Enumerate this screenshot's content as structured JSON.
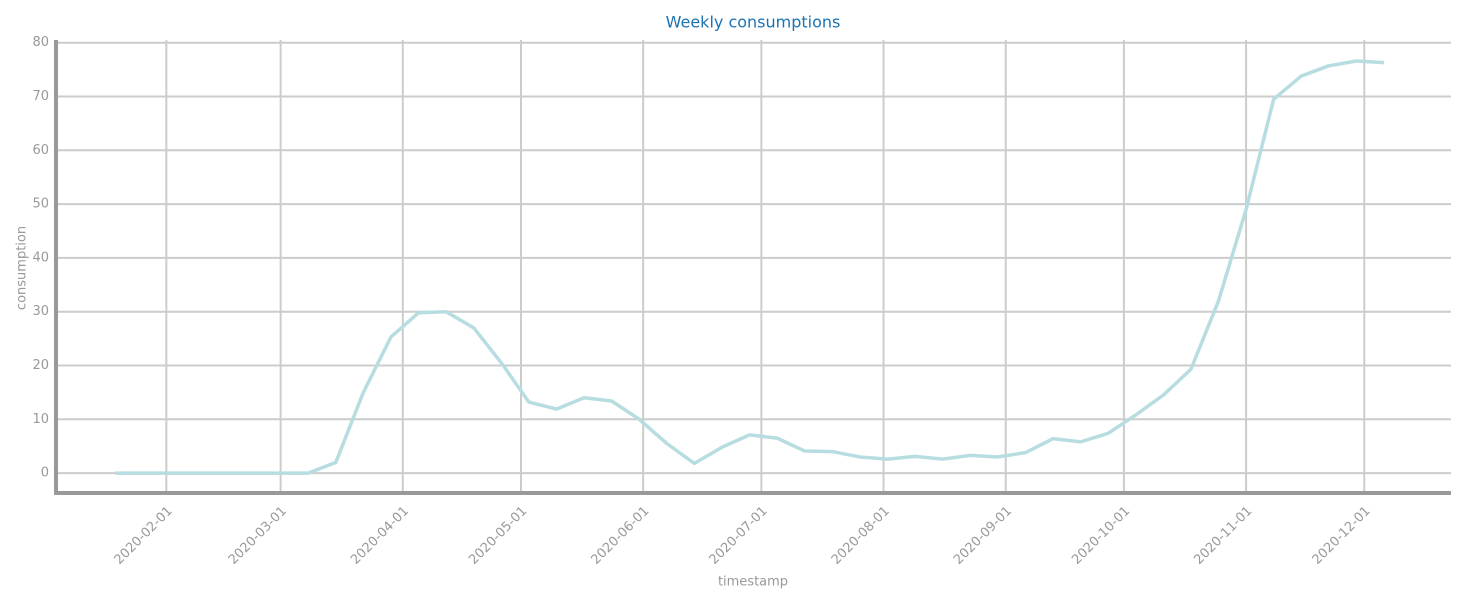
{
  "chart_data": {
    "type": "line",
    "title": "Weekly consumptions",
    "xlabel": "timestamp",
    "ylabel": "consumption",
    "x": [
      "2020-01-19",
      "2020-01-26",
      "2020-02-02",
      "2020-02-09",
      "2020-02-16",
      "2020-02-23",
      "2020-03-01",
      "2020-03-08",
      "2020-03-15",
      "2020-03-22",
      "2020-03-29",
      "2020-04-05",
      "2020-04-12",
      "2020-04-19",
      "2020-04-26",
      "2020-05-03",
      "2020-05-10",
      "2020-05-17",
      "2020-05-24",
      "2020-05-31",
      "2020-06-07",
      "2020-06-14",
      "2020-06-21",
      "2020-06-28",
      "2020-07-05",
      "2020-07-12",
      "2020-07-19",
      "2020-07-26",
      "2020-08-02",
      "2020-08-09",
      "2020-08-16",
      "2020-08-23",
      "2020-08-30",
      "2020-09-06",
      "2020-09-13",
      "2020-09-20",
      "2020-09-27",
      "2020-10-04",
      "2020-10-11",
      "2020-10-18",
      "2020-10-25",
      "2020-11-01",
      "2020-11-08",
      "2020-11-15",
      "2020-11-22",
      "2020-11-29",
      "2020-12-06"
    ],
    "values": [
      0,
      0,
      0,
      0,
      0,
      0,
      0,
      0,
      2,
      15,
      25.3,
      29.8,
      30,
      27,
      20.5,
      13.2,
      11.9,
      14,
      13.4,
      10,
      5.5,
      1.8,
      4.8,
      7.1,
      6.5,
      4.1,
      4,
      3,
      2.6,
      3.1,
      2.6,
      3.3,
      3,
      3.8,
      6.4,
      5.8,
      7.4,
      10.8,
      14.5,
      19.3,
      32,
      49,
      69.5,
      73.8,
      75.7,
      76.6,
      76.3
    ],
    "color": "#b7dde0",
    "xlim": [
      "2020-01-04",
      "2020-12-23"
    ],
    "xticks": [
      "2020-02-01",
      "2020-03-01",
      "2020-04-01",
      "2020-05-01",
      "2020-06-01",
      "2020-07-01",
      "2020-08-01",
      "2020-09-01",
      "2020-10-01",
      "2020-11-01",
      "2020-12-01"
    ],
    "ylim": [
      -3.7,
      80.5
    ],
    "yticks": [
      0,
      10,
      20,
      30,
      40,
      50,
      60,
      70,
      80
    ],
    "grid": true
  }
}
